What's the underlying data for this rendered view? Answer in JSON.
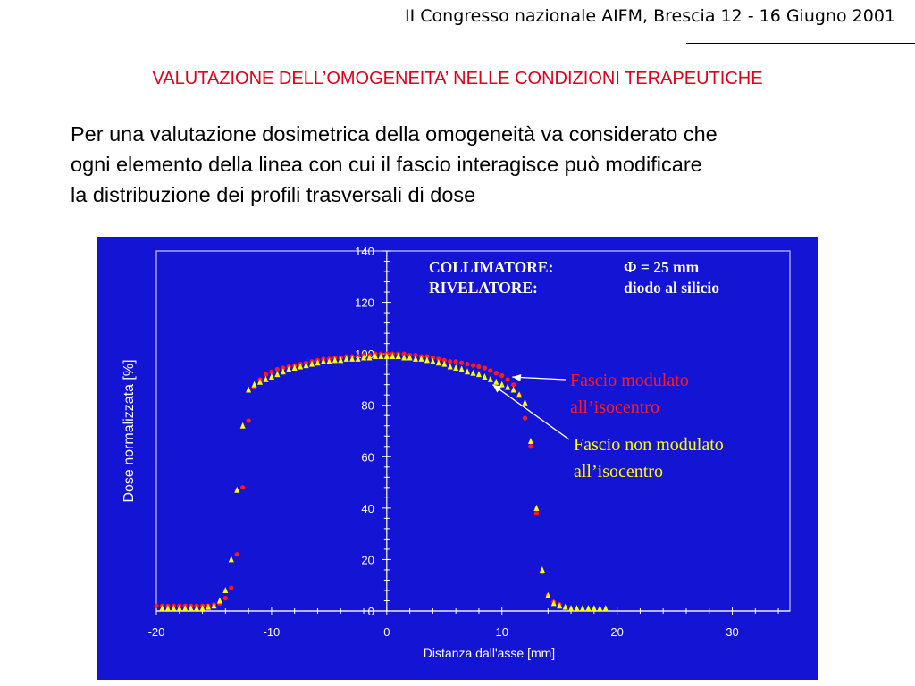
{
  "header": {
    "conference": "II Congresso nazionale AIFM, Brescia 12 - 16 Giugno 2001"
  },
  "slide": {
    "title": "VALUTAZIONE DELL’OMOGENEITA’ NELLE CONDIZIONI TERAPEUTICHE",
    "body_lines": [
      "Per una valutazione dosimetrica della omogeneità va considerato che",
      "ogni elemento della linea con cui il fascio interagisce  può modificare",
      "la distribuzione dei profili trasversali di dose"
    ]
  },
  "colors": {
    "title": "#e0001a",
    "panel_background": "#1414d4",
    "series_modulated": "#ff1a1a",
    "series_unmodulated": "#ffff00",
    "axes": "#ffffff",
    "annotation_text": "#ffffff"
  },
  "chart_data": {
    "type": "scatter",
    "xlabel": "Distanza dall'asse [mm]",
    "ylabel": "Dose normalizzata [%]",
    "xlim": [
      -20,
      35
    ],
    "ylim": [
      0,
      140
    ],
    "xticks": [
      -20,
      -10,
      0,
      10,
      20,
      30
    ],
    "yticks": [
      0,
      20,
      40,
      60,
      80,
      100,
      120,
      140
    ],
    "grid": false,
    "info_box": {
      "rows": [
        {
          "label": "COLLIMATORE:",
          "value": "Φ = 25 mm"
        },
        {
          "label": "RIVELATORE:",
          "value": "diodo al silicio"
        }
      ]
    },
    "series": [
      {
        "name": "Fascio modulato all’isocentro",
        "label_lines": [
          "Fascio modulato",
          "all’isocentro"
        ],
        "marker": "circle",
        "color": "#ff1a1a",
        "points": [
          [
            -20,
            2
          ],
          [
            -19.5,
            2
          ],
          [
            -19,
            2
          ],
          [
            -18.5,
            2
          ],
          [
            -18,
            2
          ],
          [
            -17.5,
            2
          ],
          [
            -17,
            2
          ],
          [
            -16.5,
            2
          ],
          [
            -16,
            2
          ],
          [
            -15.5,
            2
          ],
          [
            -15,
            2.5
          ],
          [
            -14.5,
            3
          ],
          [
            -14,
            5
          ],
          [
            -13.5,
            9
          ],
          [
            -13,
            22
          ],
          [
            -12.5,
            48
          ],
          [
            -12,
            74
          ],
          [
            -11.5,
            87
          ],
          [
            -11,
            90
          ],
          [
            -10.5,
            92
          ],
          [
            -10,
            93
          ],
          [
            -9.5,
            94
          ],
          [
            -9,
            94.5
          ],
          [
            -8.5,
            95
          ],
          [
            -8,
            95.5
          ],
          [
            -7.5,
            96
          ],
          [
            -7,
            96.5
          ],
          [
            -6.5,
            97
          ],
          [
            -6,
            97.5
          ],
          [
            -5.5,
            98
          ],
          [
            -5,
            98
          ],
          [
            -4.5,
            98.5
          ],
          [
            -4,
            98.5
          ],
          [
            -3.5,
            99
          ],
          [
            -3,
            99
          ],
          [
            -2.5,
            99
          ],
          [
            -2,
            99.5
          ],
          [
            -1.5,
            99.5
          ],
          [
            -1,
            100
          ],
          [
            -0.5,
            100
          ],
          [
            0,
            100
          ],
          [
            0.5,
            100
          ],
          [
            1,
            100
          ],
          [
            1.5,
            100
          ],
          [
            2,
            99.5
          ],
          [
            2.5,
            99.5
          ],
          [
            3,
            99
          ],
          [
            3.5,
            99
          ],
          [
            4,
            98.5
          ],
          [
            4.5,
            98
          ],
          [
            5,
            97.5
          ],
          [
            5.5,
            97
          ],
          [
            6,
            97
          ],
          [
            6.5,
            96.5
          ],
          [
            7,
            96
          ],
          [
            7.5,
            95.5
          ],
          [
            8,
            95
          ],
          [
            8.5,
            94.5
          ],
          [
            9,
            93.5
          ],
          [
            9.5,
            92.5
          ],
          [
            10,
            91.5
          ],
          [
            10.5,
            90
          ],
          [
            11,
            88
          ],
          [
            11.5,
            84
          ],
          [
            12,
            75
          ],
          [
            12.5,
            64
          ],
          [
            13,
            38
          ],
          [
            13.5,
            15
          ],
          [
            14,
            6
          ],
          [
            14.5,
            3.5
          ],
          [
            15,
            2.5
          ]
        ]
      },
      {
        "name": "Fascio non modulato all’isocentro",
        "label_lines": [
          "Fascio non modulato",
          "all’isocentro"
        ],
        "marker": "triangle",
        "color": "#ffff00",
        "points": [
          [
            -19.5,
            1
          ],
          [
            -19,
            1
          ],
          [
            -18.5,
            1
          ],
          [
            -18,
            1
          ],
          [
            -17.5,
            1
          ],
          [
            -17,
            1
          ],
          [
            -16.5,
            1
          ],
          [
            -16,
            1
          ],
          [
            -15.5,
            1.5
          ],
          [
            -15,
            2
          ],
          [
            -14.5,
            4
          ],
          [
            -14,
            8
          ],
          [
            -13.5,
            20
          ],
          [
            -13,
            47
          ],
          [
            -12.5,
            72
          ],
          [
            -12,
            86
          ],
          [
            -11.5,
            88
          ],
          [
            -11,
            89
          ],
          [
            -10.5,
            90
          ],
          [
            -10,
            91
          ],
          [
            -9.5,
            92
          ],
          [
            -9,
            93
          ],
          [
            -8.5,
            94
          ],
          [
            -8,
            94.5
          ],
          [
            -7.5,
            95
          ],
          [
            -7,
            95.5
          ],
          [
            -6.5,
            96
          ],
          [
            -6,
            96.5
          ],
          [
            -5.5,
            97
          ],
          [
            -5,
            97
          ],
          [
            -4.5,
            97.5
          ],
          [
            -4,
            97.5
          ],
          [
            -3.5,
            98
          ],
          [
            -3,
            98
          ],
          [
            -2.5,
            98
          ],
          [
            -2,
            98.5
          ],
          [
            -1.5,
            98.5
          ],
          [
            -1,
            99
          ],
          [
            -0.5,
            99
          ],
          [
            0,
            99
          ],
          [
            0.5,
            99
          ],
          [
            1,
            99
          ],
          [
            1.5,
            98.5
          ],
          [
            2,
            98.5
          ],
          [
            2.5,
            98
          ],
          [
            3,
            98
          ],
          [
            3.5,
            97.5
          ],
          [
            4,
            97
          ],
          [
            4.5,
            96.5
          ],
          [
            5,
            96
          ],
          [
            5.5,
            95
          ],
          [
            6,
            94.5
          ],
          [
            6.5,
            94
          ],
          [
            7,
            93
          ],
          [
            7.5,
            92.5
          ],
          [
            8,
            92
          ],
          [
            8.5,
            91
          ],
          [
            9,
            90
          ],
          [
            9.5,
            89
          ],
          [
            10,
            88
          ],
          [
            10.5,
            87
          ],
          [
            11,
            86
          ],
          [
            11.5,
            84
          ],
          [
            12,
            81
          ],
          [
            12.5,
            66
          ],
          [
            13,
            40
          ],
          [
            13.5,
            16
          ],
          [
            14,
            6
          ],
          [
            14.5,
            3
          ],
          [
            15,
            2
          ],
          [
            15.5,
            1.5
          ],
          [
            16,
            1
          ],
          [
            16.5,
            1
          ],
          [
            17,
            1
          ],
          [
            17.5,
            1
          ],
          [
            18,
            1
          ],
          [
            18.5,
            1
          ],
          [
            19,
            1
          ]
        ]
      }
    ]
  }
}
